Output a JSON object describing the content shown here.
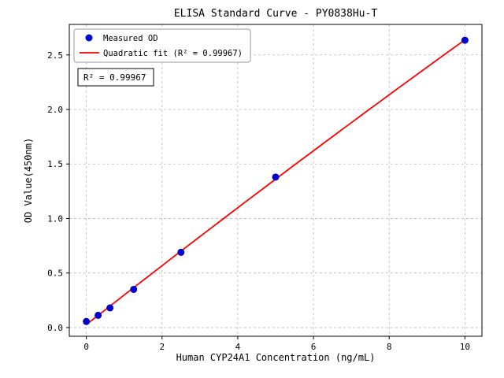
{
  "figure": {
    "background": "#ffffff"
  },
  "chart_data": {
    "type": "scatter",
    "title": "ELISA Standard Curve - PY0838Hu-T",
    "xlabel": "Human CYP24A1 Concentration (ng/mL)",
    "ylabel": "OD Value(450nm)",
    "xlim": [
      -0.45,
      10.45
    ],
    "ylim": [
      -0.08,
      2.78
    ],
    "xticks": [
      "0",
      "2",
      "4",
      "6",
      "8",
      "10"
    ],
    "xtick_values": [
      0,
      2,
      4,
      6,
      8,
      10
    ],
    "yticks": [
      "0.0",
      "0.5",
      "1.0",
      "1.5",
      "2.0",
      "2.5"
    ],
    "ytick_values": [
      0,
      0.5,
      1.0,
      1.5,
      2.0,
      2.5
    ],
    "grid": true,
    "grid_style": "dashed",
    "series": [
      {
        "name": "Measured OD",
        "type": "scatter",
        "color": "#0000cd",
        "x": [
          0,
          0.312,
          0.625,
          1.25,
          2.5,
          5,
          10
        ],
        "y": [
          0.055,
          0.112,
          0.18,
          0.35,
          0.69,
          1.38,
          2.635
        ]
      },
      {
        "name": "Quadratic fit (R² = 0.99967)",
        "type": "quadratic_fit_line",
        "color": "#ff0000",
        "fit_of_series": "Measured OD"
      }
    ],
    "r_squared": "0.99967",
    "annotation": {
      "text": "R² = 0.99967"
    },
    "legend": {
      "position": "upper-left",
      "entries": [
        "Measured OD",
        "Quadratic fit (R² = 0.99967)"
      ]
    }
  }
}
